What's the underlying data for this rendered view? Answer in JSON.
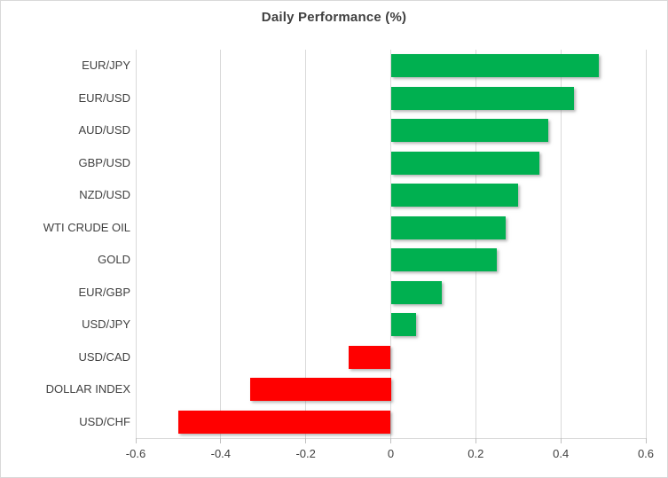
{
  "chart": {
    "title": "Daily Performance (%)"
  },
  "chart_data": {
    "type": "bar",
    "orientation": "horizontal",
    "title": "Daily Performance (%)",
    "categories": [
      "EUR/JPY",
      "EUR/USD",
      "AUD/USD",
      "GBP/USD",
      "NZD/USD",
      "WTI CRUDE OIL",
      "GOLD",
      "EUR/GBP",
      "USD/JPY",
      "USD/CAD",
      "DOLLAR INDEX",
      "USD/CHF"
    ],
    "values": [
      0.49,
      0.43,
      0.37,
      0.35,
      0.3,
      0.27,
      0.25,
      0.12,
      0.06,
      -0.1,
      -0.33,
      -0.5
    ],
    "xlabel": "",
    "ylabel": "",
    "xlim": [
      -0.6,
      0.6
    ],
    "xticks": [
      -0.6,
      -0.4,
      -0.2,
      0,
      0.2,
      0.4,
      0.6
    ],
    "xtick_labels": [
      "-0.6",
      "-0.4",
      "-0.2",
      "0",
      "0.2",
      "0.4",
      "0.6"
    ],
    "grid": true,
    "legend": false,
    "positive_color": "#00B050",
    "negative_color": "#FF0000",
    "gridline_color": "#D9D9D9",
    "text_color": "#404040"
  }
}
